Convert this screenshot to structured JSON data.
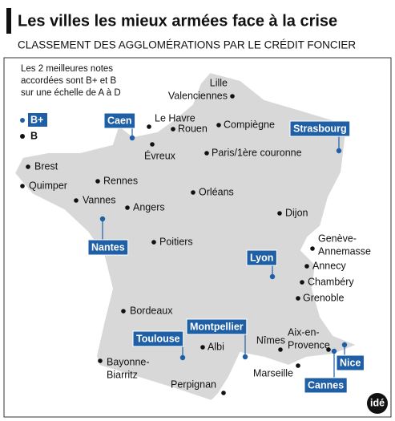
{
  "title": "Les villes les mieux armées face à la crise",
  "subtitle": "CLASSEMENT DES AGGLOMÉRATIONS PAR LE CRÉDIT FONCIER",
  "note": [
    "Les 2 meilleures notes",
    "accordées sont B+ et B",
    "sur une échelle de A à D"
  ],
  "legend": [
    "B+",
    "B"
  ],
  "b_plus_cities": [
    "Caen",
    "Strasbourg",
    "Nantes",
    "Lyon",
    "Toulouse",
    "Montpellier",
    "Nice",
    "Cannes"
  ],
  "b_cities": [
    [
      "Lille",
      "Valenciennes"
    ],
    [
      "Le Havre"
    ],
    [
      "Rouen"
    ],
    [
      "Compiègne"
    ],
    [
      "Évreux"
    ],
    [
      "Paris/1ère couronne"
    ],
    [
      "Brest"
    ],
    [
      "Rennes"
    ],
    [
      "Quimper"
    ],
    [
      "Vannes"
    ],
    [
      "Angers"
    ],
    [
      "Orléans"
    ],
    [
      "Dijon"
    ],
    [
      "Poitiers"
    ],
    [
      "Genève-",
      "Annemasse"
    ],
    [
      "Annecy"
    ],
    [
      "Chambéry"
    ],
    [
      "Grenoble"
    ],
    [
      "Bordeaux"
    ],
    [
      "Albi"
    ],
    [
      "Nîmes"
    ],
    [
      "Aix-en-",
      "Provence"
    ],
    [
      "Marseille"
    ],
    [
      "Bayonne-",
      "Biarritz"
    ],
    [
      "Perpignan"
    ]
  ],
  "logo": "idé"
}
